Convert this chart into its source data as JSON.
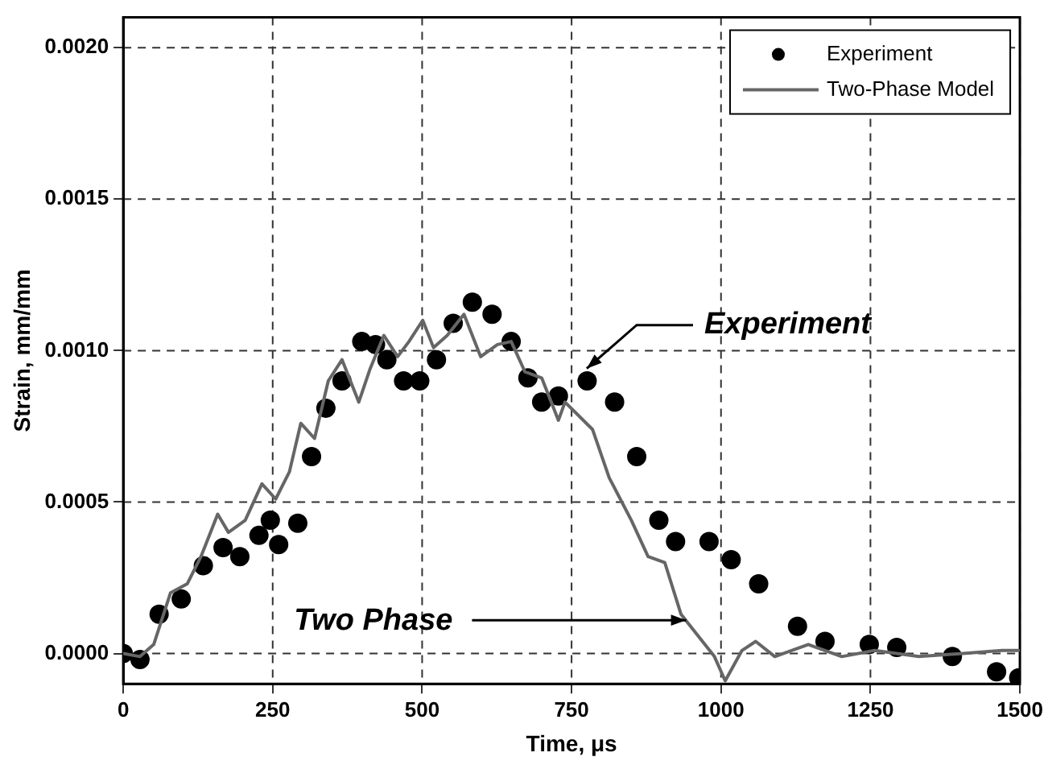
{
  "chart_data": {
    "type": "line",
    "xlabel": "Time, μs",
    "ylabel": "Strain, mm/mm",
    "xlim": [
      0,
      1500
    ],
    "xticks": [
      0,
      250,
      500,
      750,
      1000,
      1250,
      1500
    ],
    "ylim": [
      -0.0001,
      0.0021
    ],
    "yticks": [
      {
        "value": 0,
        "label": "0.0000"
      },
      {
        "value": 0.0005,
        "label": "0.0005"
      },
      {
        "value": 0.001,
        "label": "0.0010"
      },
      {
        "value": 0.0015,
        "label": "0.0015"
      },
      {
        "value": 0.002,
        "label": "0.0020"
      }
    ],
    "grid": true,
    "legend": "top right",
    "annotations": [
      {
        "text": "Experiment",
        "x": 770,
        "y": 0.00093
      },
      {
        "text": "Two Phase",
        "x": 947,
        "y": 0.00011
      }
    ],
    "series": [
      {
        "name": "Experiment",
        "type": "scatter",
        "marker": "circle",
        "color": "#000000",
        "x": [
          0,
          28,
          60,
          97,
          134,
          167,
          195,
          227,
          246,
          260,
          292,
          315,
          339,
          366,
          399,
          422,
          441,
          469,
          496,
          524,
          552,
          584,
          617,
          649,
          677,
          700,
          728,
          776,
          822,
          859,
          896,
          924,
          980,
          1017,
          1063,
          1128,
          1174,
          1248,
          1294,
          1387,
          1461,
          1498
        ],
        "values": [
          0,
          -2e-05,
          0.00013,
          0.00018,
          0.00029,
          0.00035,
          0.00032,
          0.00039,
          0.00044,
          0.00036,
          0.00043,
          0.00065,
          0.00081,
          0.0009,
          0.00103,
          0.00102,
          0.00097,
          0.0009,
          0.0009,
          0.00097,
          0.00109,
          0.00116,
          0.00112,
          0.00103,
          0.00091,
          0.00083,
          0.00085,
          0.0009,
          0.00083,
          0.00065,
          0.00044,
          0.00037,
          0.00037,
          0.00031,
          0.00023,
          9e-05,
          4e-05,
          3e-05,
          2e-05,
          -1e-05,
          -6e-05,
          -8e-05
        ]
      },
      {
        "name": "Two-Phase Model",
        "marker": "none",
        "color": "#666666",
        "x": [
          0,
          28,
          51,
          79,
          107,
          130,
          158,
          176,
          204,
          232,
          255,
          278,
          297,
          320,
          343,
          366,
          394,
          413,
          436,
          459,
          478,
          501,
          519,
          542,
          570,
          598,
          626,
          649,
          672,
          700,
          728,
          739,
          785,
          813,
          850,
          878,
          906,
          933,
          961,
          989,
          1007,
          1035,
          1058,
          1090,
          1146,
          1202,
          1257,
          1331,
          1405,
          1470,
          1498
        ],
        "values": [
          0,
          -1e-05,
          3e-05,
          0.0002,
          0.00023,
          0.00032,
          0.00046,
          0.0004,
          0.00044,
          0.00056,
          0.00051,
          0.0006,
          0.00076,
          0.00071,
          0.0009,
          0.00097,
          0.00083,
          0.00094,
          0.00105,
          0.00098,
          0.00103,
          0.0011,
          0.00101,
          0.00105,
          0.00112,
          0.00098,
          0.00102,
          0.00103,
          0.00093,
          0.00091,
          0.00077,
          0.00083,
          0.00074,
          0.00058,
          0.00044,
          0.00032,
          0.0003,
          0.00013,
          6e-05,
          -1e-05,
          -9e-05,
          1e-05,
          4e-05,
          -1e-05,
          3e-05,
          -1e-05,
          1e-05,
          -1e-05,
          0,
          1e-05,
          1e-05
        ]
      }
    ]
  }
}
